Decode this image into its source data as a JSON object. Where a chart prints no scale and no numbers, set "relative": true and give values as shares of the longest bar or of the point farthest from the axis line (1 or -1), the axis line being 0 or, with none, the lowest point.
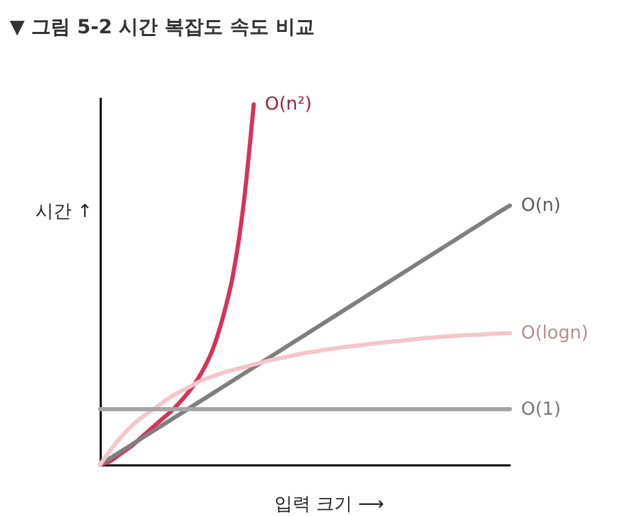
{
  "chart_data": {
    "type": "line",
    "title": "▼ 그림 5-2  시간 복잡도 속도 비교",
    "xlabel": "입력 크기 ⟶",
    "ylabel": "시간 ↑",
    "relative": true,
    "grid": false,
    "legend": false,
    "marker": "none",
    "line_style": "solid",
    "categories": [
      null,
      null,
      null,
      null,
      null,
      null,
      null,
      null,
      null,
      null,
      null,
      null,
      null,
      null,
      null,
      null,
      null,
      null,
      null,
      null,
      null,
      null,
      null,
      null,
      null,
      null,
      null,
      null,
      null,
      null,
      null,
      null,
      null,
      null,
      null,
      null,
      null,
      null,
      null,
      null,
      null
    ],
    "series": [
      {
        "name": "O(n²)",
        "color": "#d6325a",
        "values": [
          0,
          0.01,
          0.03,
          0.05,
          0.075,
          0.1,
          0.125,
          0.15,
          0.18,
          0.215,
          0.26,
          0.32,
          0.41,
          0.53,
          0.72,
          1,
          null,
          null,
          null,
          null,
          null,
          null,
          null,
          null,
          null,
          null,
          null,
          null,
          null,
          null,
          null,
          null,
          null,
          null,
          null,
          null,
          null,
          null,
          null,
          null,
          null
        ]
      },
      {
        "name": "O(n)",
        "color": "#7f7f7f",
        "values": [
          0,
          0.018,
          0.036,
          0.054,
          0.072,
          0.09,
          0.108,
          0.126,
          0.144,
          0.162,
          0.18,
          0.198,
          0.216,
          0.234,
          0.252,
          0.27,
          0.288,
          0.306,
          0.324,
          0.342,
          0.36,
          0.378,
          0.396,
          0.414,
          0.432,
          0.45,
          0.468,
          0.486,
          0.504,
          0.522,
          0.54,
          0.558,
          0.576,
          0.594,
          0.612,
          0.63,
          0.648,
          0.666,
          0.684,
          0.702,
          0.719
        ]
      },
      {
        "name": "O(logn)",
        "color": "#f4c6cb",
        "values": [
          0,
          0.04,
          0.075,
          0.105,
          0.13,
          0.15,
          0.17,
          0.19,
          0.205,
          0.22,
          0.235,
          0.245,
          0.255,
          0.263,
          0.27,
          0.278,
          0.285,
          0.292,
          0.298,
          0.304,
          0.31,
          0.314,
          0.319,
          0.323,
          0.327,
          0.33,
          0.334,
          0.337,
          0.34,
          0.343,
          0.346,
          0.349,
          0.352,
          0.354,
          0.356,
          0.358,
          0.36,
          0.361,
          0.363,
          0.364,
          0.365
        ]
      },
      {
        "name": "O(1)",
        "color": "#a6a6a6",
        "values": [
          0.154,
          0.154,
          0.154,
          0.154,
          0.154,
          0.154,
          0.154,
          0.154,
          0.154,
          0.154,
          0.154,
          0.154,
          0.154,
          0.154,
          0.154,
          0.154,
          0.154,
          0.154,
          0.154,
          0.154,
          0.154,
          0.154,
          0.154,
          0.154,
          0.154,
          0.154,
          0.154,
          0.154,
          0.154,
          0.154,
          0.154,
          0.154,
          0.154,
          0.154,
          0.154,
          0.154,
          0.154,
          0.154,
          0.154,
          0.154,
          0.154
        ]
      }
    ]
  }
}
